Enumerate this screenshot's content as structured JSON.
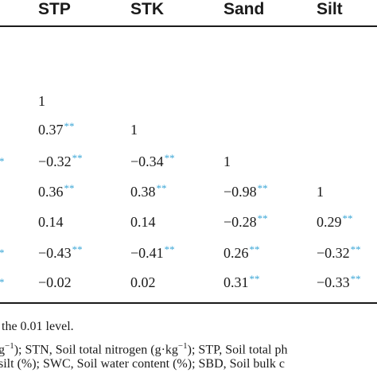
{
  "headers": [
    "STP",
    "STK",
    "Sand",
    "Silt"
  ],
  "sig_mark": "**",
  "rows": [
    {
      "edge": "",
      "cells": [
        {
          "v": "1",
          "s": ""
        },
        {
          "v": "",
          "s": ""
        },
        {
          "v": "",
          "s": ""
        },
        {
          "v": "",
          "s": ""
        }
      ]
    },
    {
      "edge": "",
      "cells": [
        {
          "v": "0.37",
          "s": "**"
        },
        {
          "v": "1",
          "s": ""
        },
        {
          "v": "",
          "s": ""
        },
        {
          "v": "",
          "s": ""
        }
      ]
    },
    {
      "edge": "*",
      "cells": [
        {
          "v": "−0.32",
          "s": "**"
        },
        {
          "v": "−0.34",
          "s": "**"
        },
        {
          "v": "1",
          "s": ""
        },
        {
          "v": "",
          "s": ""
        }
      ]
    },
    {
      "edge": "",
      "cells": [
        {
          "v": "0.36",
          "s": "**"
        },
        {
          "v": "0.38",
          "s": "**"
        },
        {
          "v": "−0.98",
          "s": "**"
        },
        {
          "v": "1",
          "s": ""
        }
      ]
    },
    {
      "edge": "",
      "cells": [
        {
          "v": "0.14",
          "s": ""
        },
        {
          "v": "0.14",
          "s": ""
        },
        {
          "v": "−0.28",
          "s": "**"
        },
        {
          "v": "0.29",
          "s": "**"
        }
      ]
    },
    {
      "edge": "*",
      "cells": [
        {
          "v": "−0.43",
          "s": "**"
        },
        {
          "v": "−0.41",
          "s": "**"
        },
        {
          "v": "0.26",
          "s": "**"
        },
        {
          "v": "−0.32",
          "s": "**"
        }
      ]
    },
    {
      "edge": "*",
      "cells": [
        {
          "v": "−0.02",
          "s": ""
        },
        {
          "v": "0.02",
          "s": ""
        },
        {
          "v": "0.31",
          "s": "**"
        },
        {
          "v": "−0.33",
          "s": "**"
        }
      ]
    }
  ],
  "footnotes": {
    "line1": "the 0.01 level.",
    "line2_a": "g",
    "line2_sup": "−1",
    "line2_b": "); STN, Soil total nitrogen (g·kg",
    "line2_sup2": "−1",
    "line2_c": "); STP, Soil total ph",
    "line3": "silt (%); SWC, Soil water content (%); SBD, Soil bulk c"
  }
}
